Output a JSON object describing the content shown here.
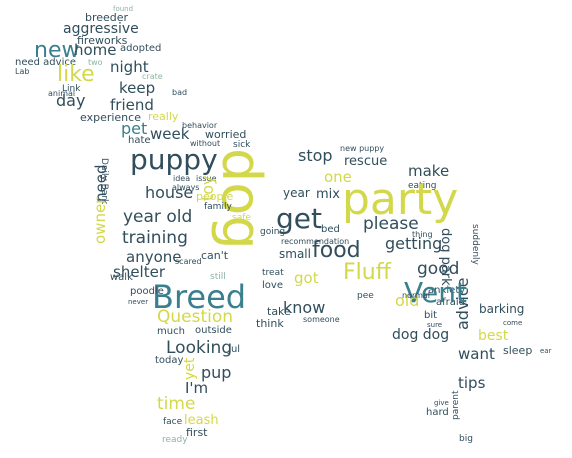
{
  "words": {
    "found": "found",
    "breeder": "breeder",
    "aggressive": "aggressive",
    "fireworks": "fireworks",
    "new": "new",
    "home": "home",
    "adopted": "adopted",
    "need_advice": "need advice",
    "two": "two",
    "lab": "Lab",
    "link": "Link",
    "animal": "animal",
    "like": "like",
    "night": "night",
    "crate": "crate",
    "day": "day",
    "keep": "keep",
    "bad": "bad",
    "friend": "friend",
    "experience": "experience",
    "really": "really",
    "behavior": "behavior",
    "pet": "pet",
    "week": "week",
    "worried": "worried",
    "hate": "hate",
    "without": "without",
    "sick": "sick",
    "puppy": "puppy",
    "dog": "dog",
    "party": "party",
    "new_puppy": "new puppy",
    "stop": "stop",
    "rescue": "rescue",
    "daily_bark": "Daily Bark",
    "idea": "idea",
    "issue": "issue",
    "house": "house",
    "toy": "toy",
    "one": "one",
    "make": "make",
    "mix": "mix",
    "eating": "eating",
    "year": "year",
    "people": "people",
    "always": "always",
    "family": "family",
    "safe": "safe",
    "get": "get",
    "owner": "owner",
    "year_old": "year old",
    "training": "training",
    "need": "need",
    "please": "please",
    "bed": "bed",
    "food": "food",
    "dog_park": "dog park",
    "getting": "getting",
    "anyone": "anyone",
    "cant": "can't",
    "scared": "scared",
    "recommendation": "recommendation",
    "small": "small",
    "shelter": "shelter",
    "walk": "walk",
    "still": "still",
    "treat": "treat",
    "fluff": "Fluff",
    "good": "good",
    "breed": "Breed",
    "got": "got",
    "love": "love",
    "pee": "pee",
    "anxiety": "anxiety",
    "afraid": "afraid",
    "advice": "advice",
    "poodle": "poodle",
    "never": "never",
    "vent": "Vent",
    "old": "old",
    "barking": "barking",
    "question": "Question",
    "know": "know",
    "take": "take",
    "think": "think",
    "bit": "bit",
    "sure": "sure",
    "much": "much",
    "outside": "outside",
    "dog_dog": "dog dog",
    "best": "best",
    "looking": "Looking",
    "jul": "Jul",
    "today": "today",
    "yet": "yet",
    "pup": "pup",
    "want": "want",
    "sleep": "sleep",
    "ear": "ear",
    "im": "I'm",
    "tips": "tips",
    "time": "time",
    "give": "give",
    "hard": "hard",
    "parent": "parent",
    "leash": "leash",
    "face": "face",
    "first": "first",
    "ready": "ready",
    "big": "big",
    "come": "come",
    "someone": "someone",
    "going": "going",
    "thing": "thing",
    "normal": "normal",
    "suddenly": "suddenly"
  },
  "colors": {
    "yellow": "#d3d84a",
    "teal": "#3a7f8d",
    "slate": "#314e5c",
    "sage": "#8cb6a0",
    "pale": "#b9d2b6"
  }
}
